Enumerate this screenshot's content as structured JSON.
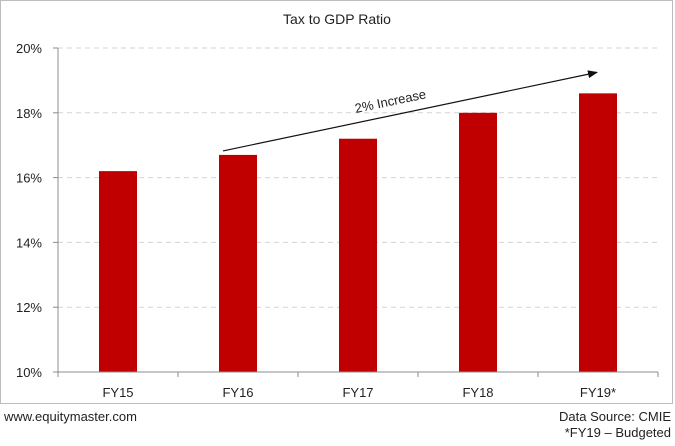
{
  "chart_data": {
    "type": "bar",
    "title": "Tax to GDP Ratio",
    "categories": [
      "FY15",
      "FY16",
      "FY17",
      "FY18",
      "FY19*"
    ],
    "values": [
      16.2,
      16.7,
      17.2,
      18.0,
      18.6
    ],
    "ylim": [
      10,
      20
    ],
    "yticks": [
      10,
      12,
      14,
      16,
      18,
      20
    ],
    "ytick_labels": [
      "10%",
      "12%",
      "14%",
      "16%",
      "18%",
      "20%"
    ],
    "xlabel": "",
    "ylabel": "",
    "grid": true,
    "bar_color": "#c00000",
    "annotation": {
      "text": "2% Increase",
      "from_category": "FY16",
      "to_category": "FY19*"
    }
  },
  "footer": {
    "website": "www.equitymaster.com",
    "source": "Data Source: CMIE",
    "note": "*FY19 – Budgeted"
  }
}
